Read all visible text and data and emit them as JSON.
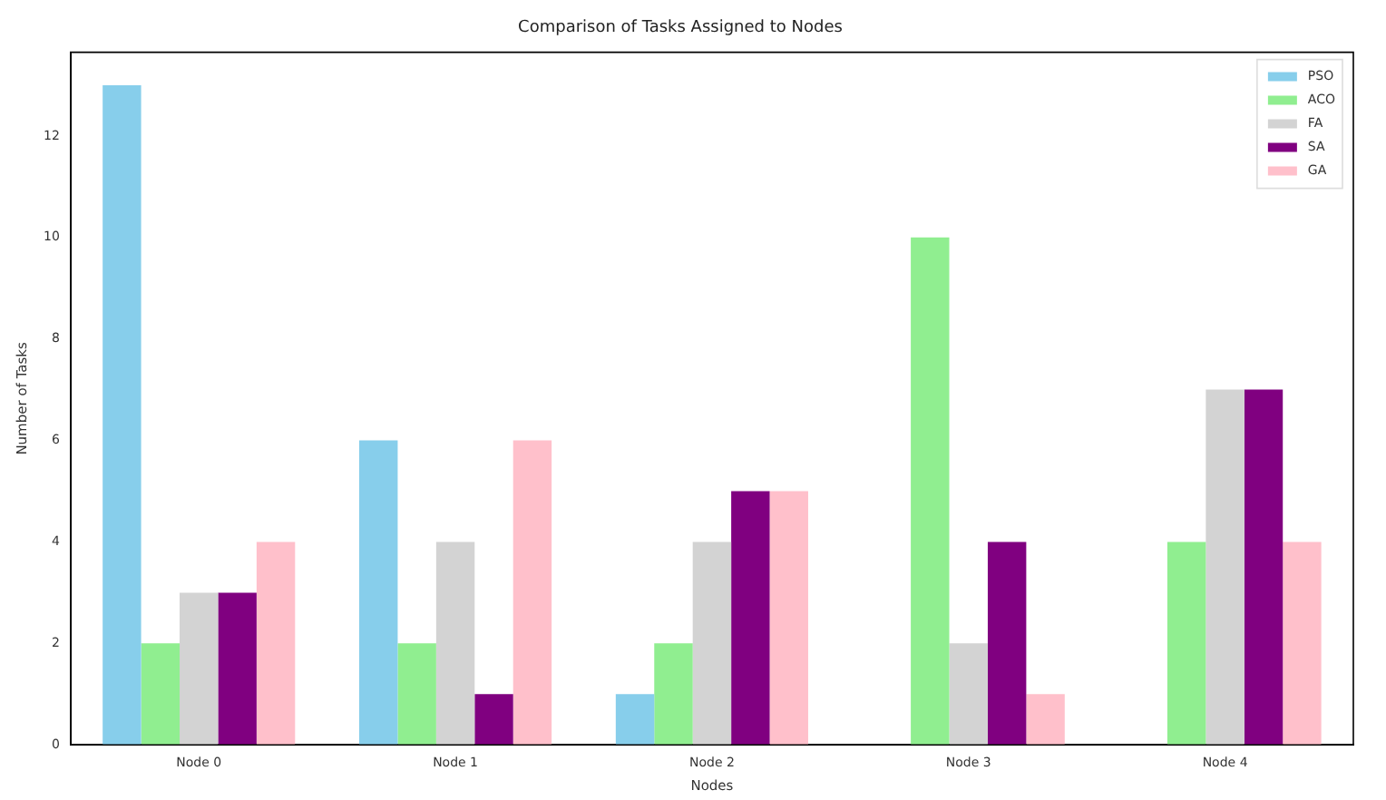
{
  "chart_data": {
    "type": "bar",
    "title": "Comparison of Tasks Assigned to Nodes",
    "xlabel": "Nodes",
    "ylabel": "Number of Tasks",
    "categories": [
      "Node 0",
      "Node 1",
      "Node 2",
      "Node 3",
      "Node 4"
    ],
    "series": [
      {
        "name": "PSO",
        "color": "#87ceeb",
        "values": [
          13,
          6,
          1,
          0,
          0
        ]
      },
      {
        "name": "ACO",
        "color": "#90ee90",
        "values": [
          2,
          2,
          2,
          10,
          4
        ]
      },
      {
        "name": "FA",
        "color": "#d3d3d3",
        "values": [
          3,
          4,
          4,
          2,
          7
        ]
      },
      {
        "name": "SA",
        "color": "#800080",
        "values": [
          3,
          1,
          5,
          4,
          7
        ]
      },
      {
        "name": "GA",
        "color": "#ffc0cb",
        "values": [
          4,
          6,
          5,
          1,
          4
        ]
      }
    ],
    "ylim": [
      0,
      13.65
    ],
    "yticks": [
      0,
      2,
      4,
      6,
      8,
      10,
      12
    ],
    "grid": false,
    "legend": "top right"
  }
}
